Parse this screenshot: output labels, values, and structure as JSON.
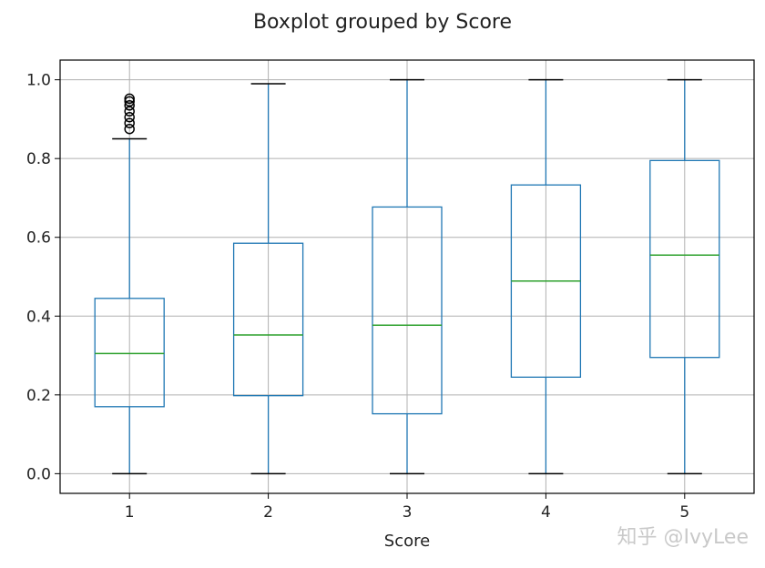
{
  "chart_data": {
    "type": "boxplot",
    "title": "Boxplot grouped by Score",
    "xlabel": "Score",
    "ylabel": "",
    "ylim": [
      -0.05,
      1.05
    ],
    "yticks": [
      0.0,
      0.2,
      0.4,
      0.6,
      0.8,
      1.0
    ],
    "ytick_labels": [
      "0.0",
      "0.2",
      "0.4",
      "0.6",
      "0.8",
      "1.0"
    ],
    "grid": true,
    "colors": {
      "box": "#1f77b4",
      "median": "#2ca02c",
      "whisker": "#1f77b4",
      "cap": "#000000",
      "grid": "#b0b0b0",
      "outlier": "#000000"
    },
    "categories": [
      "1",
      "2",
      "3",
      "4",
      "5"
    ],
    "boxes": [
      {
        "label": "1",
        "whislo": 0.0,
        "q1": 0.17,
        "med": 0.305,
        "q3": 0.445,
        "whishi": 0.85,
        "fliers": [
          0.875,
          0.89,
          0.905,
          0.92,
          0.935,
          0.945,
          0.952
        ]
      },
      {
        "label": "2",
        "whislo": 0.0,
        "q1": 0.198,
        "med": 0.352,
        "q3": 0.585,
        "whishi": 0.99,
        "fliers": []
      },
      {
        "label": "3",
        "whislo": 0.0,
        "q1": 0.152,
        "med": 0.377,
        "q3": 0.677,
        "whishi": 1.0,
        "fliers": []
      },
      {
        "label": "4",
        "whislo": 0.0,
        "q1": 0.245,
        "med": 0.489,
        "q3": 0.733,
        "whishi": 1.0,
        "fliers": []
      },
      {
        "label": "5",
        "whislo": 0.0,
        "q1": 0.295,
        "med": 0.555,
        "q3": 0.795,
        "whishi": 1.0,
        "fliers": []
      }
    ]
  },
  "watermark": "知乎 @IvyLee"
}
